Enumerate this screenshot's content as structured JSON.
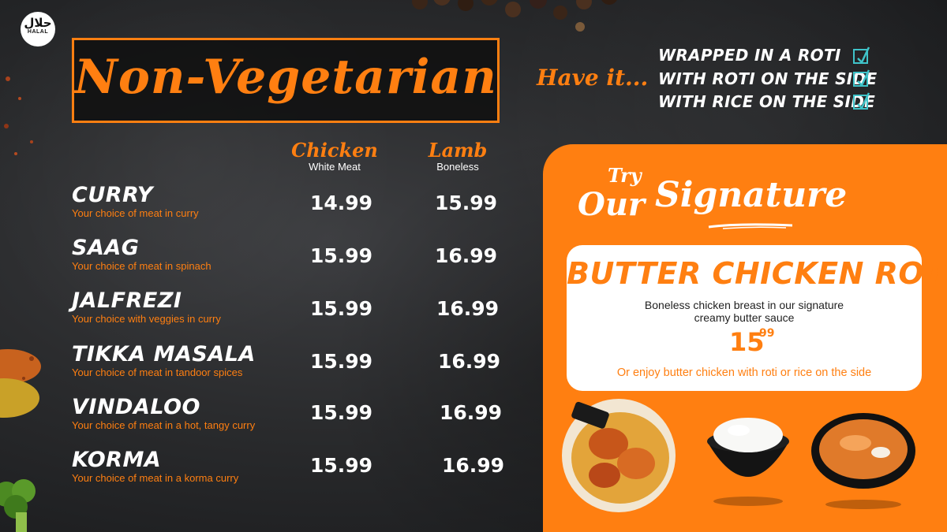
{
  "badge": {
    "arabic": "حلال",
    "label": "HALAL"
  },
  "title": "Non-Vegetarian",
  "have_it": {
    "lead": "Have it...",
    "options": [
      {
        "label": "WRAPPED IN A ROTI",
        "checked": true
      },
      {
        "label": "WITH ROTI ON THE SIDE",
        "checked": true
      },
      {
        "label": "WITH RICE ON THE SIDE",
        "checked": true
      }
    ]
  },
  "columns": [
    {
      "name": "Chicken",
      "sub": "White Meat"
    },
    {
      "name": "Lamb",
      "sub": "Boneless"
    }
  ],
  "items": [
    {
      "name": "CURRY",
      "desc": "Your choice of meat in curry",
      "chicken": "14.99",
      "lamb": "15.99"
    },
    {
      "name": "SAAG",
      "desc": "Your choice of meat in spinach",
      "chicken": "15.99",
      "lamb": "16.99"
    },
    {
      "name": "JALFREZI",
      "desc": "Your choice with veggies in curry",
      "chicken": "15.99",
      "lamb": "16.99"
    },
    {
      "name": "TIKKA MASALA",
      "desc": "Your choice of meat in tandoor spices",
      "chicken": "15.99",
      "lamb": "16.99"
    },
    {
      "name": "VINDALOO",
      "desc": "Your choice of meat in a hot, tangy curry",
      "chicken": "15.99",
      "lamb": "16.99"
    },
    {
      "name": "KORMA",
      "desc": "Your choice of meat in a korma curry",
      "chicken": "15.99",
      "lamb": "16.99"
    }
  ],
  "signature": {
    "try": "Try",
    "our": "Our",
    "word": "Signature",
    "dish": "BUTTER CHICKEN ROTI",
    "desc_line1": "Boneless chicken breast in our signature",
    "desc_line2": "creamy butter sauce",
    "price_whole": "15",
    "price_cents": "99",
    "footer": "Or enjoy butter chicken with roti or rice on the side"
  },
  "colors": {
    "accent": "#ff7f11",
    "check": "#3fc3c9",
    "background": "#2a2b2d"
  }
}
